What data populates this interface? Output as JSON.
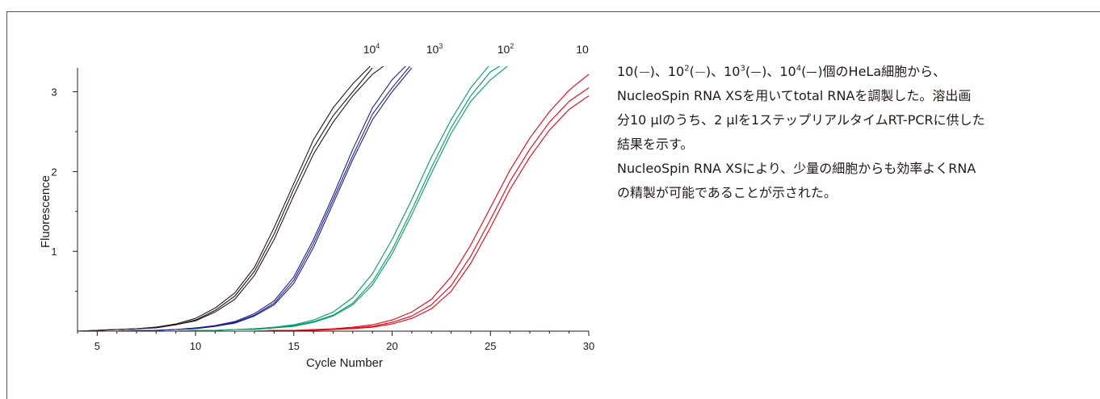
{
  "chart_data": {
    "type": "line",
    "xlabel": "Cycle Number",
    "ylabel": "Fluorescence",
    "xlim": [
      4,
      30
    ],
    "ylim": [
      0,
      3.3
    ],
    "x_ticks": [
      5,
      10,
      15,
      20,
      25,
      30
    ],
    "y_ticks": [
      1,
      2,
      3
    ],
    "grid": false,
    "x": [
      4,
      5,
      6,
      7,
      8,
      9,
      10,
      11,
      12,
      13,
      14,
      15,
      16,
      17,
      18,
      19,
      20,
      21,
      22,
      23,
      24,
      25,
      26,
      27,
      28,
      29,
      30
    ],
    "groups": [
      {
        "label_base": "10",
        "label_exp": "4",
        "color": "#231815",
        "replicates": [
          [
            0,
            0.01,
            0.02,
            0.03,
            0.05,
            0.09,
            0.16,
            0.29,
            0.48,
            0.8,
            1.3,
            1.85,
            2.4,
            2.8,
            3.1,
            3.35,
            null,
            null,
            null,
            null,
            null,
            null,
            null,
            null,
            null,
            null,
            null
          ],
          [
            0,
            0.01,
            0.02,
            0.03,
            0.05,
            0.08,
            0.14,
            0.26,
            0.44,
            0.75,
            1.22,
            1.78,
            2.3,
            2.7,
            3.0,
            3.3,
            null,
            null,
            null,
            null,
            null,
            null,
            null,
            null,
            null,
            null,
            null
          ],
          [
            0,
            0.01,
            0.02,
            0.03,
            0.04,
            0.08,
            0.13,
            0.24,
            0.4,
            0.7,
            1.15,
            1.7,
            2.22,
            2.62,
            2.95,
            3.22,
            3.4,
            null,
            null,
            null,
            null,
            null,
            null,
            null,
            null,
            null,
            null
          ]
        ]
      },
      {
        "label_base": "10",
        "label_exp": "3",
        "color": "#1d2088",
        "replicates": [
          [
            0,
            0,
            0,
            0.01,
            0.01,
            0.02,
            0.04,
            0.07,
            0.12,
            0.22,
            0.38,
            0.68,
            1.15,
            1.7,
            2.28,
            2.8,
            3.15,
            3.4,
            null,
            null,
            null,
            null,
            null,
            null,
            null,
            null,
            null
          ],
          [
            0,
            0,
            0,
            0.01,
            0.01,
            0.02,
            0.04,
            0.06,
            0.11,
            0.2,
            0.35,
            0.64,
            1.1,
            1.65,
            2.2,
            2.72,
            3.05,
            3.35,
            null,
            null,
            null,
            null,
            null,
            null,
            null,
            null,
            null
          ],
          [
            0,
            0,
            0,
            0.01,
            0.01,
            0.02,
            0.03,
            0.06,
            0.1,
            0.19,
            0.33,
            0.6,
            1.05,
            1.6,
            2.15,
            2.65,
            3.0,
            3.3,
            null,
            null,
            null,
            null,
            null,
            null,
            null,
            null,
            null
          ]
        ]
      },
      {
        "label_base": "10",
        "label_exp": "2",
        "color": "#009b6b",
        "replicates": [
          [
            0,
            0,
            0,
            0,
            0,
            0,
            0.01,
            0.01,
            0.02,
            0.03,
            0.05,
            0.08,
            0.14,
            0.24,
            0.42,
            0.72,
            1.15,
            1.65,
            2.18,
            2.65,
            3.05,
            3.35,
            null,
            null,
            null,
            null,
            null
          ],
          [
            0,
            0,
            0,
            0,
            0,
            0,
            0.01,
            0.01,
            0.02,
            0.03,
            0.04,
            0.07,
            0.12,
            0.2,
            0.35,
            0.62,
            1.02,
            1.52,
            2.05,
            2.55,
            2.95,
            3.25,
            3.4,
            null,
            null,
            null,
            null
          ],
          [
            0,
            0,
            0,
            0,
            0,
            0,
            0.01,
            0.01,
            0.02,
            0.02,
            0.04,
            0.06,
            0.11,
            0.19,
            0.33,
            0.58,
            0.97,
            1.46,
            1.98,
            2.48,
            2.88,
            3.15,
            3.35,
            null,
            null,
            null,
            null
          ]
        ]
      },
      {
        "label_base": "10",
        "label_exp": "",
        "color": "#e60012",
        "replicates": [
          [
            0,
            0,
            0,
            0,
            0,
            0,
            0,
            0,
            0,
            0,
            0.01,
            0.01,
            0.02,
            0.03,
            0.05,
            0.08,
            0.14,
            0.24,
            0.4,
            0.68,
            1.08,
            1.55,
            2.02,
            2.42,
            2.75,
            3.02,
            3.22
          ],
          [
            0,
            0,
            0,
            0,
            0,
            0,
            0,
            0,
            0,
            0,
            0.01,
            0.01,
            0.01,
            0.02,
            0.04,
            0.06,
            0.11,
            0.19,
            0.33,
            0.57,
            0.94,
            1.4,
            1.88,
            2.28,
            2.62,
            2.88,
            3.05
          ],
          [
            0,
            0,
            0,
            0,
            0,
            0,
            0,
            0,
            0,
            0,
            0.01,
            0.01,
            0.01,
            0.02,
            0.03,
            0.05,
            0.09,
            0.16,
            0.28,
            0.5,
            0.85,
            1.3,
            1.78,
            2.18,
            2.52,
            2.78,
            2.95
          ]
        ]
      }
    ]
  },
  "description": {
    "line1_parts": [
      "10(",
      ")、10",
      "2",
      "(",
      ")、10",
      "3",
      "(",
      ")、10",
      "4",
      "(",
      ")個のHeLa細胞から、"
    ],
    "line2": "NucleoSpin RNA XSを用いてtotal RNAを調製した。溶出画",
    "line3": "分10 μlのうち、2 μlを1ステップリアルタイムRT-PCRに供した",
    "line4": "結果を示す。",
    "line5": "NucleoSpin RNA XSにより、少量の細胞からも効率よくRNA",
    "line6": "の精製が可能であることが示された。",
    "swatch_colors": [
      "#e60012",
      "#009b6b",
      "#1d2088",
      "#231815"
    ]
  }
}
